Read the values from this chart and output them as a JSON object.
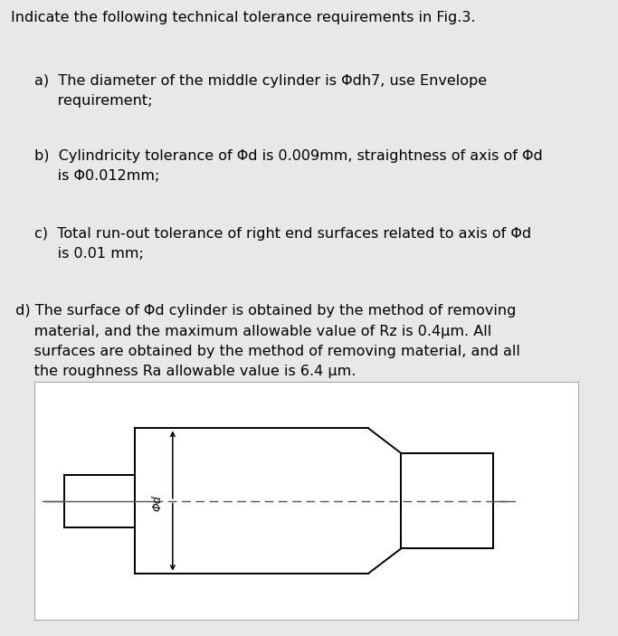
{
  "title": "Indicate the following technical tolerance requirements in Fig.3.",
  "para_a": "a)  The diameter of the middle cylinder is Φdh7, use Envelope\n     requirement;",
  "para_b": "b)  Cylindricity tolerance of Φd is 0.009mm, straightness of axis of Φd\n     is Φ0.012mm;",
  "para_c": "c)  Total run-out tolerance of right end surfaces related to axis of Φd\n     is 0.01 mm;",
  "para_d": " d) The surface of Φd cylinder is obtained by the method of removing\n     material, and the maximum allowable value of Rz is 0.4μm. All\n     surfaces are obtained by the method of removing material, and all\n     the roughness Ra allowable value is 6.4 μm.",
  "bg_color": "#e8e8e8",
  "text_color": "#000000",
  "diagram_bg": "#ffffff",
  "line_color": "#000000"
}
